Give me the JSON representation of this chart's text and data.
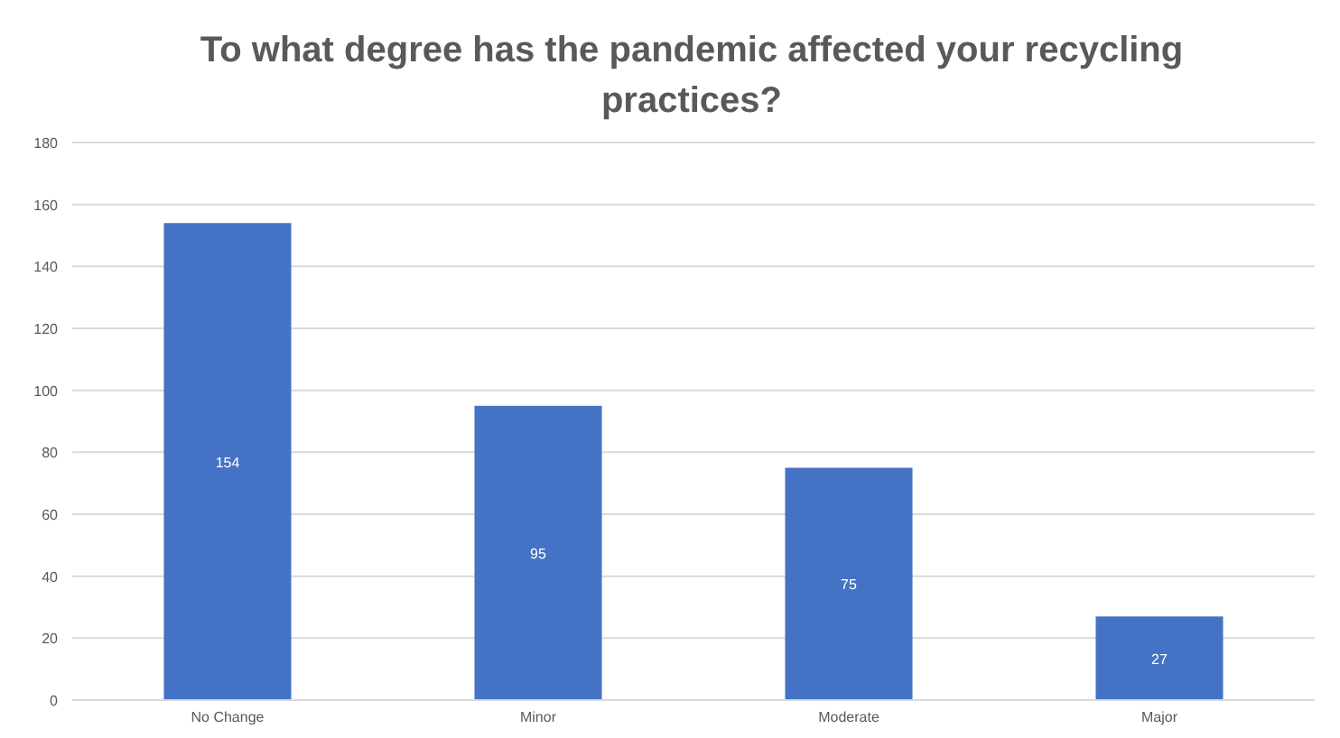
{
  "chart_data": {
    "type": "bar",
    "title": "To what degree has the pandemic affected your recycling practices?",
    "categories": [
      "No Change",
      "Minor",
      "Moderate",
      "Major"
    ],
    "values": [
      154,
      95,
      75,
      27
    ],
    "color": "#4472c4",
    "ylim": [
      0,
      180
    ],
    "yticks": [
      0,
      20,
      40,
      60,
      80,
      100,
      120,
      140,
      160,
      180
    ],
    "grid": "y",
    "data_labels": true
  }
}
